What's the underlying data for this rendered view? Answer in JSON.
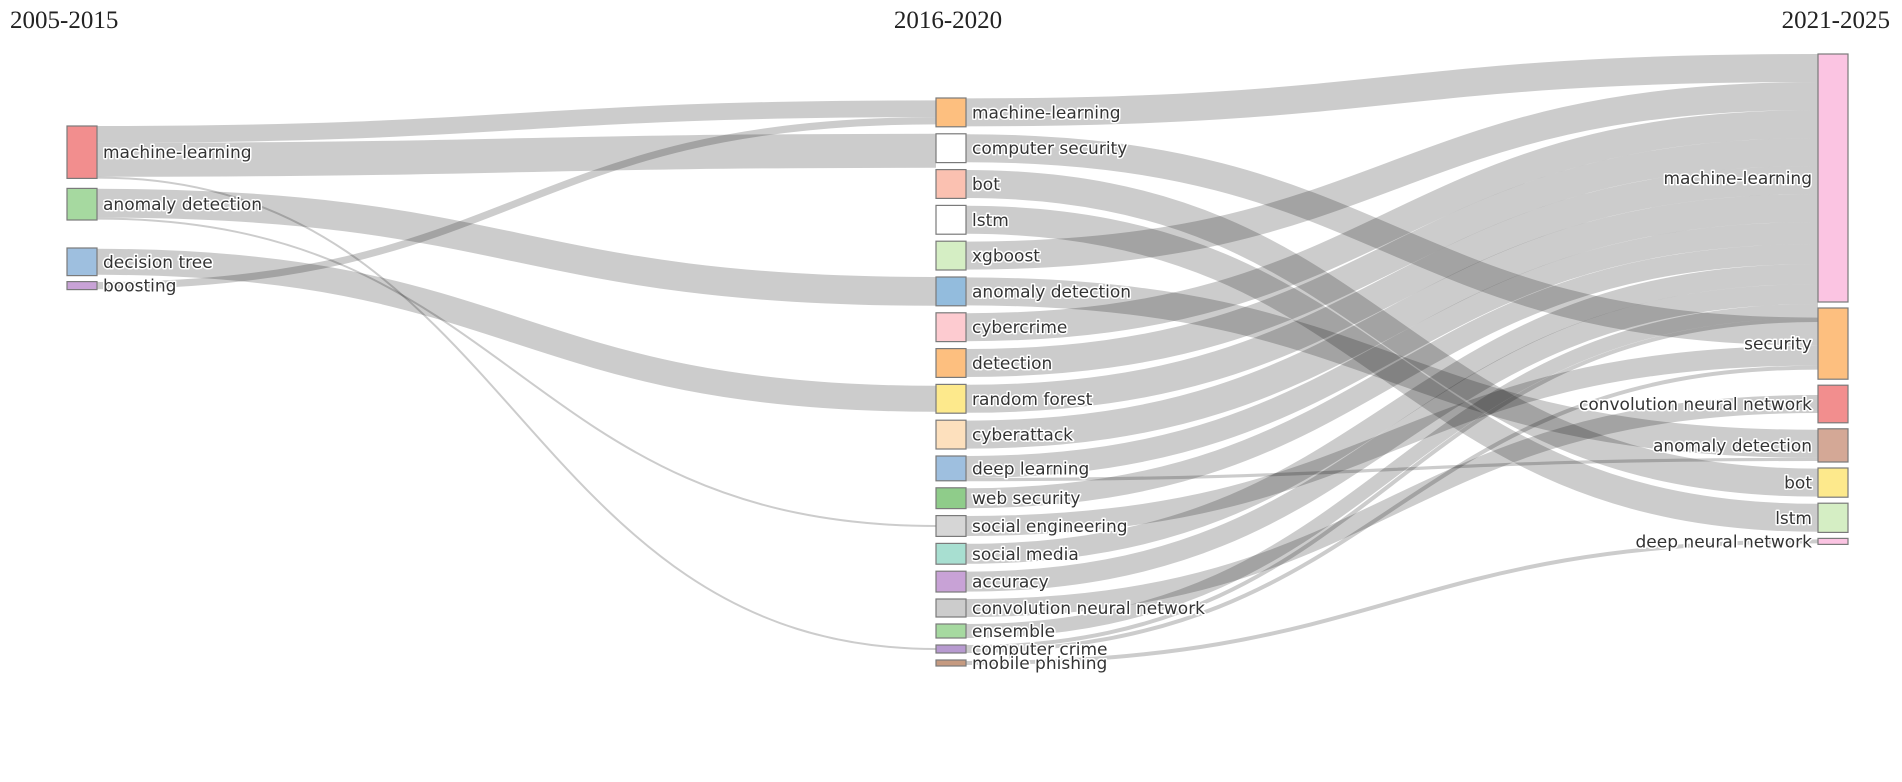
{
  "periods": [
    {
      "id": "p1",
      "label": "2005-2015"
    },
    {
      "id": "p2",
      "label": "2016-2020"
    },
    {
      "id": "p3",
      "label": "2021-2025"
    }
  ],
  "nodes": [
    {
      "id": "a_ml",
      "column": 0,
      "label": "machine-learning",
      "weight": 1.31,
      "color": "#f28e8e"
    },
    {
      "id": "a_ad",
      "column": 0,
      "label": "anomaly detection",
      "weight": 0.79,
      "color": "#a6d9a0"
    },
    {
      "id": "a_dt",
      "column": 0,
      "label": "decision tree",
      "weight": 0.69,
      "color": "#9ebfdf"
    },
    {
      "id": "a_bo",
      "column": 0,
      "label": "boosting",
      "weight": 0.2,
      "color": "#c8a2d6"
    },
    {
      "id": "b_ml",
      "column": 1,
      "label": "machine-learning",
      "weight": 0.72,
      "color": "#fdbf7f"
    },
    {
      "id": "b_cs",
      "column": 1,
      "label": "computer security",
      "weight": 0.72,
      "color": "#ffffff"
    },
    {
      "id": "b_bot",
      "column": 1,
      "label": "bot",
      "weight": 0.72,
      "color": "#fbc1b1"
    },
    {
      "id": "b_lstm",
      "column": 1,
      "label": "lstm",
      "weight": 0.72,
      "color": "#ffffff"
    },
    {
      "id": "b_xgb",
      "column": 1,
      "label": "xgboost",
      "weight": 0.72,
      "color": "#d5eec4"
    },
    {
      "id": "b_ad",
      "column": 1,
      "label": "anomaly detection",
      "weight": 0.72,
      "color": "#93bcdd"
    },
    {
      "id": "b_cc",
      "column": 1,
      "label": "cybercrime",
      "weight": 0.72,
      "color": "#fdcbd0"
    },
    {
      "id": "b_det",
      "column": 1,
      "label": "detection",
      "weight": 0.72,
      "color": "#fdbf7f"
    },
    {
      "id": "b_rf",
      "column": 1,
      "label": "random forest",
      "weight": 0.72,
      "color": "#fde98c"
    },
    {
      "id": "b_ca",
      "column": 1,
      "label": "cyberattack",
      "weight": 0.72,
      "color": "#fde0bd"
    },
    {
      "id": "b_dl",
      "column": 1,
      "label": "deep learning",
      "weight": 0.62,
      "color": "#9ebfdf"
    },
    {
      "id": "b_ws",
      "column": 1,
      "label": "web security",
      "weight": 0.52,
      "color": "#8fcc8a"
    },
    {
      "id": "b_se",
      "column": 1,
      "label": "social engineering",
      "weight": 0.52,
      "color": "#d6d6d6"
    },
    {
      "id": "b_sm",
      "column": 1,
      "label": "social media",
      "weight": 0.52,
      "color": "#a8dfd1"
    },
    {
      "id": "b_acc",
      "column": 1,
      "label": "accuracy",
      "weight": 0.52,
      "color": "#c8a2d6"
    },
    {
      "id": "b_cnn",
      "column": 1,
      "label": "convolution neural network",
      "weight": 0.45,
      "color": "#cccccc"
    },
    {
      "id": "b_ens",
      "column": 1,
      "label": "ensemble",
      "weight": 0.35,
      "color": "#a6d9a0"
    },
    {
      "id": "b_ccr",
      "column": 1,
      "label": "computer crime",
      "weight": 0.2,
      "color": "#b79ad0"
    },
    {
      "id": "b_mp",
      "column": 1,
      "label": "mobile phishing",
      "weight": 0.12,
      "color": "#c59a80"
    },
    {
      "id": "c_ml",
      "column": 2,
      "label": "machine-learning",
      "weight": 6.2,
      "color": "#fbc4e2"
    },
    {
      "id": "c_sec",
      "column": 2,
      "label": "security",
      "weight": 1.78,
      "color": "#fdbf7f"
    },
    {
      "id": "c_cnn",
      "column": 2,
      "label": "convolution neural network",
      "weight": 0.94,
      "color": "#f28e8e"
    },
    {
      "id": "c_ad",
      "column": 2,
      "label": "anomaly detection",
      "weight": 0.83,
      "color": "#d4a896"
    },
    {
      "id": "c_bot",
      "column": 2,
      "label": "bot",
      "weight": 0.73,
      "color": "#fde98c"
    },
    {
      "id": "c_lstm",
      "column": 2,
      "label": "lstm",
      "weight": 0.73,
      "color": "#d5eec4"
    },
    {
      "id": "c_dnn",
      "column": 2,
      "label": "deep neural network",
      "weight": 0.1,
      "color": "#fbc4e2"
    }
  ],
  "links": [
    {
      "source": "a_ml",
      "target": "b_cs",
      "value": 0.85
    },
    {
      "source": "a_ml",
      "target": "b_ml",
      "value": 0.42
    },
    {
      "source": "a_ml",
      "target": "b_ccr",
      "value": 0.04
    },
    {
      "source": "a_ad",
      "target": "b_ad",
      "value": 0.72
    },
    {
      "source": "a_ad",
      "target": "b_se",
      "value": 0.05
    },
    {
      "source": "a_dt",
      "target": "b_rf",
      "value": 0.65
    },
    {
      "source": "a_bo",
      "target": "b_ml",
      "value": 0.18
    },
    {
      "source": "b_ml",
      "target": "c_ml",
      "value": 0.7
    },
    {
      "source": "b_cs",
      "target": "c_sec",
      "value": 0.7
    },
    {
      "source": "b_bot",
      "target": "c_bot",
      "value": 0.7
    },
    {
      "source": "b_lstm",
      "target": "c_lstm",
      "value": 0.7
    },
    {
      "source": "b_xgb",
      "target": "c_ml",
      "value": 0.7
    },
    {
      "source": "b_ad",
      "target": "c_ad",
      "value": 0.7
    },
    {
      "source": "b_cc",
      "target": "c_ml",
      "value": 0.7
    },
    {
      "source": "b_det",
      "target": "c_ml",
      "value": 0.7
    },
    {
      "source": "b_rf",
      "target": "c_ml",
      "value": 0.7
    },
    {
      "source": "b_ca",
      "target": "c_ml",
      "value": 0.7
    },
    {
      "source": "b_dl",
      "target": "c_ml",
      "value": 0.55
    },
    {
      "source": "b_dl",
      "target": "c_ad",
      "value": 0.08
    },
    {
      "source": "b_ws",
      "target": "c_ml",
      "value": 0.5
    },
    {
      "source": "b_se",
      "target": "c_sec",
      "value": 0.5
    },
    {
      "source": "b_sm",
      "target": "c_ml",
      "value": 0.5
    },
    {
      "source": "b_acc",
      "target": "c_ml",
      "value": 0.5
    },
    {
      "source": "b_cnn",
      "target": "c_cnn",
      "value": 0.45
    },
    {
      "source": "b_ens",
      "target": "c_ml",
      "value": 0.35
    },
    {
      "source": "b_ccr",
      "target": "c_sec",
      "value": 0.1
    },
    {
      "source": "b_ccr",
      "target": "c_ml",
      "value": 0.1
    },
    {
      "source": "b_mp",
      "target": "c_dnn",
      "value": 0.1
    }
  ]
}
